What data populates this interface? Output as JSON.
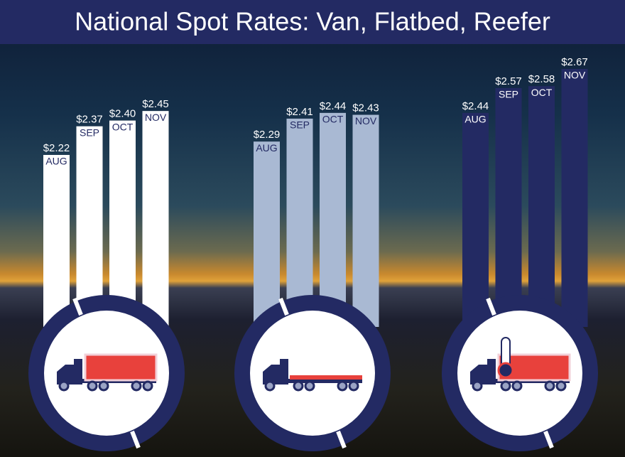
{
  "chart_data": {
    "type": "bar",
    "title": "National Spot Rates: Van, Flatbed, Reefer",
    "categories": [
      "AUG",
      "SEP",
      "OCT",
      "NOV"
    ],
    "series": [
      {
        "color": "#ffffff",
        "values": [
          2.22,
          2.37,
          2.4,
          2.45
        ],
        "value_labels": [
          "$2.22",
          "$2.37",
          "$2.40",
          "$2.45"
        ]
      },
      {
        "color": "#a9b9d3",
        "values": [
          2.29,
          2.41,
          2.44,
          2.43
        ],
        "value_labels": [
          "$2.29",
          "$2.41",
          "$2.44",
          "$2.43"
        ]
      },
      {
        "color": "#232a63",
        "values": [
          2.44,
          2.57,
          2.58,
          2.67
        ],
        "value_labels": [
          "$2.44",
          "$2.57",
          "$2.58",
          "$2.67"
        ]
      }
    ]
  }
}
